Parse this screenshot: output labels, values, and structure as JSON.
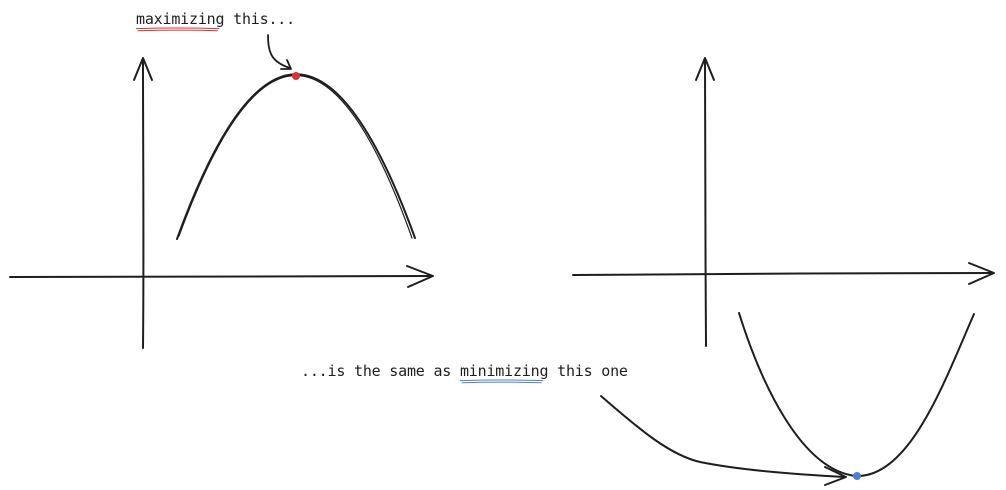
{
  "annotations": {
    "top": {
      "highlight": "maximizing",
      "rest": " this..."
    },
    "bottom": {
      "before": "...is the same as ",
      "highlight": "minimizing",
      "after": " this one"
    }
  },
  "colors": {
    "ink": "#1e1e1e",
    "max_point": "#e03131",
    "min_point": "#4a7fe0",
    "max_underline": "#e03131",
    "min_underline": "#4a7fe0"
  },
  "marks": {
    "max_point": "maximum-point-marker",
    "min_point": "minimum-point-marker"
  }
}
